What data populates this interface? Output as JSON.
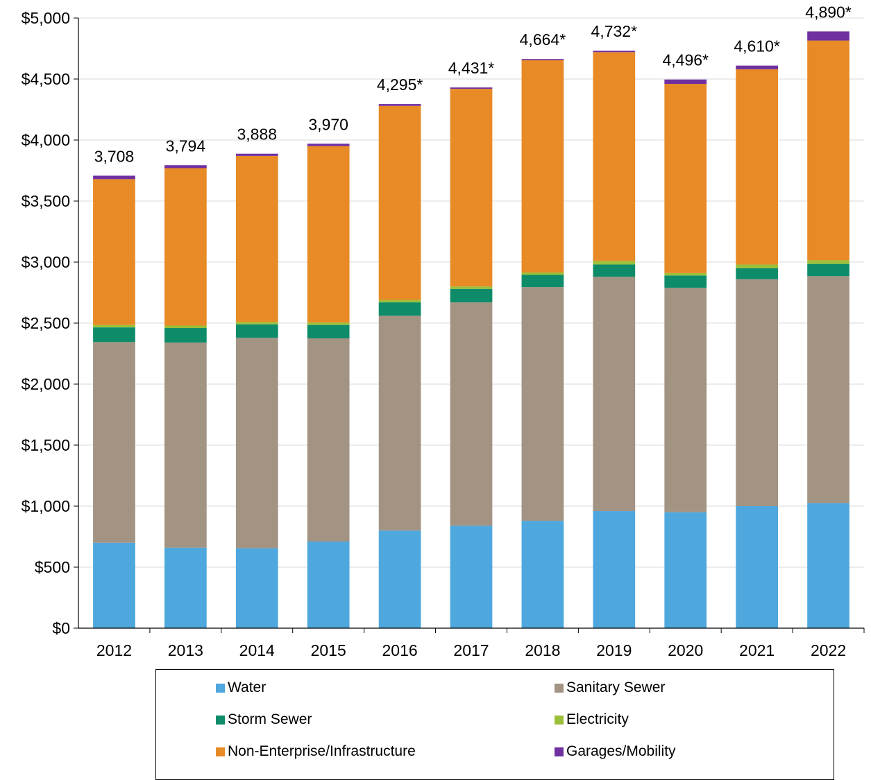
{
  "chart_data": {
    "type": "bar",
    "stacked": true,
    "title": "",
    "xlabel": "",
    "ylabel": "",
    "ylim": [
      0,
      5000
    ],
    "y_ticks": [
      "$0",
      "$500",
      "$1,000",
      "$1,500",
      "$2,000",
      "$2,500",
      "$3,000",
      "$3,500",
      "$4,000",
      "$4,500",
      "$5,000"
    ],
    "y_tick_values": [
      0,
      500,
      1000,
      1500,
      2000,
      2500,
      3000,
      3500,
      4000,
      4500,
      5000
    ],
    "grid": true,
    "legend_position": "bottom",
    "categories": [
      "2012",
      "2013",
      "2014",
      "2015",
      "2016",
      "2017",
      "2018",
      "2019",
      "2020",
      "2021",
      "2022"
    ],
    "totals": [
      "3,708",
      "3,794",
      "3,888",
      "3,970",
      "4,295*",
      "4,431*",
      "4,664*",
      "4,732*",
      "4,496*",
      "4,610*",
      "4,890*"
    ],
    "series": [
      {
        "name": "Water",
        "color": "#4ea7dd",
        "values": [
          700,
          660,
          655,
          710,
          800,
          840,
          880,
          960,
          950,
          1000,
          1025
        ]
      },
      {
        "name": "Sanitary Sewer",
        "color": "#a29383",
        "values": [
          1645,
          1680,
          1725,
          1665,
          1760,
          1830,
          1915,
          1920,
          1840,
          1860,
          1860
        ]
      },
      {
        "name": "Storm Sewer",
        "color": "#0e8c6a",
        "values": [
          120,
          120,
          110,
          110,
          110,
          110,
          100,
          100,
          100,
          90,
          100
        ]
      },
      {
        "name": "Electricity",
        "color": "#9cbf3a",
        "values": [
          20,
          20,
          20,
          20,
          20,
          20,
          20,
          30,
          20,
          30,
          30
        ]
      },
      {
        "name": "Non-Enterprise/Infrastructure",
        "color": "#e88a25",
        "values": [
          1195,
          1290,
          1360,
          1445,
          1590,
          1620,
          1740,
          1710,
          1550,
          1600,
          1800
        ]
      },
      {
        "name": "Garages/Mobility",
        "color": "#7030a0",
        "values": [
          28,
          24,
          18,
          20,
          15,
          11,
          9,
          12,
          36,
          30,
          75
        ]
      }
    ]
  }
}
